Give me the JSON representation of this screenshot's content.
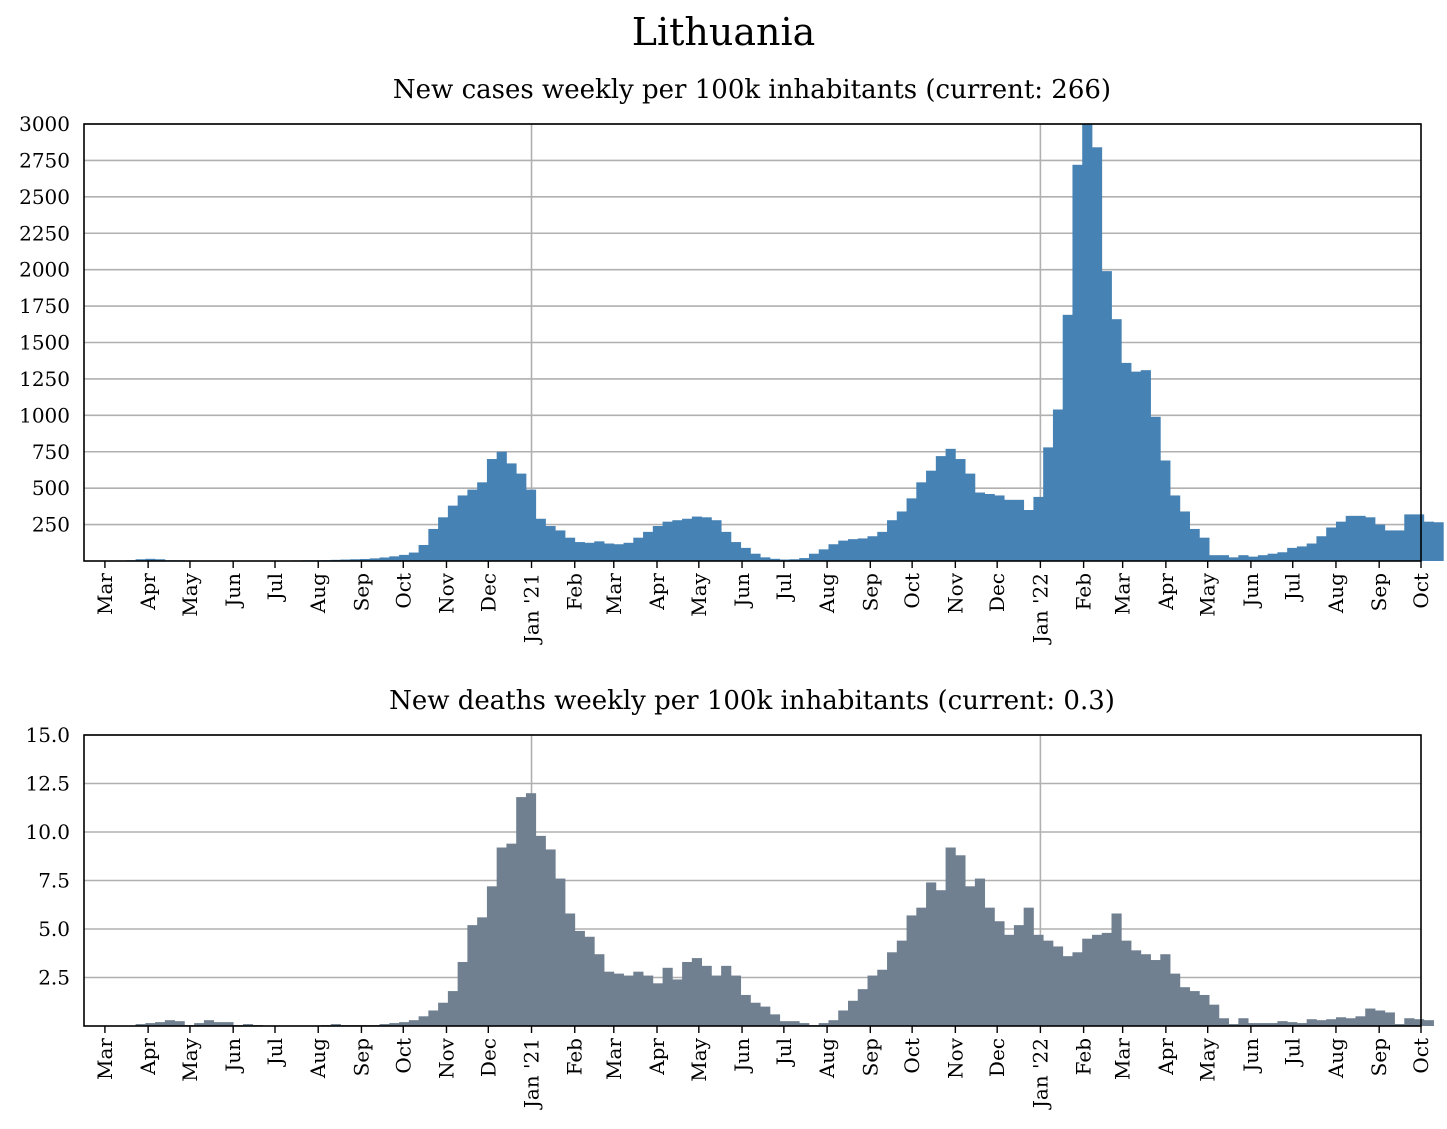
{
  "title": "Lithuania",
  "chart_data": [
    {
      "type": "bar",
      "title": "New cases weekly per 100k inhabitants (current: 266)",
      "xlabel": "",
      "ylabel": "",
      "ylim": [
        0,
        3000
      ],
      "yticks": [
        "250",
        "500",
        "750",
        "1000",
        "1250",
        "1500",
        "1750",
        "2000",
        "2250",
        "2500",
        "2750",
        "3000"
      ],
      "xticks": [
        "Mar",
        "Apr",
        "May",
        "Jun",
        "Jul",
        "Aug",
        "Sep",
        "Oct",
        "Nov",
        "Dec",
        "Jan '21",
        "Feb",
        "Mar",
        "Apr",
        "May",
        "Jun",
        "Jul",
        "Aug",
        "Sep",
        "Oct",
        "Nov",
        "Dec",
        "Jan '22",
        "Feb",
        "Mar",
        "Apr",
        "May",
        "Jun",
        "Jul",
        "Aug",
        "Sep",
        "Oct"
      ],
      "grid": true,
      "color": "#4682b4",
      "x_start": "2020-03-02",
      "week_days": 7,
      "values": [
        0,
        0,
        5,
        12,
        15,
        12,
        5,
        5,
        4,
        3,
        3,
        3,
        2,
        2,
        2,
        2,
        2,
        2,
        3,
        4,
        5,
        5,
        6,
        8,
        10,
        12,
        14,
        18,
        24,
        32,
        42,
        58,
        110,
        220,
        300,
        380,
        450,
        490,
        540,
        700,
        750,
        670,
        600,
        490,
        290,
        240,
        210,
        160,
        130,
        125,
        135,
        120,
        115,
        125,
        160,
        200,
        240,
        270,
        280,
        290,
        305,
        300,
        280,
        200,
        130,
        90,
        50,
        25,
        15,
        10,
        12,
        20,
        50,
        80,
        115,
        140,
        150,
        155,
        170,
        200,
        280,
        340,
        430,
        540,
        620,
        720,
        770,
        700,
        600,
        470,
        460,
        450,
        420,
        420,
        350,
        440,
        780,
        1040,
        1690,
        2720,
        3000,
        2840,
        1990,
        1660,
        1360,
        1300,
        1310,
        990,
        690,
        450,
        340,
        220,
        160,
        40,
        40,
        25,
        40,
        30,
        40,
        50,
        60,
        90,
        100,
        120,
        170,
        230,
        270,
        310,
        310,
        300,
        250,
        210,
        210,
        320,
        320,
        270,
        266
      ]
    },
    {
      "type": "bar",
      "title": "New deaths weekly per 100k inhabitants (current: 0.3)",
      "xlabel": "",
      "ylabel": "",
      "ylim": [
        0,
        15
      ],
      "yticks": [
        "2.5",
        "5.0",
        "7.5",
        "10.0",
        "12.5",
        "15.0"
      ],
      "xticks": [
        "Mar",
        "Apr",
        "May",
        "Jun",
        "Jul",
        "Aug",
        "Sep",
        "Oct",
        "Nov",
        "Dec",
        "Jan '21",
        "Feb",
        "Mar",
        "Apr",
        "May",
        "Jun",
        "Jul",
        "Aug",
        "Sep",
        "Oct",
        "Nov",
        "Dec",
        "Jan '22",
        "Feb",
        "Mar",
        "Apr",
        "May",
        "Jun",
        "Jul",
        "Aug",
        "Sep",
        "Oct"
      ],
      "grid": true,
      "color": "#708090",
      "x_start": "2020-03-02",
      "week_days": 7,
      "values": [
        0,
        0,
        0,
        0.1,
        0.15,
        0.2,
        0.3,
        0.25,
        0.05,
        0.15,
        0.3,
        0.2,
        0.2,
        0.05,
        0.1,
        0.05,
        0.03,
        0.03,
        0.03,
        0.03,
        0.03,
        0.03,
        0.05,
        0.1,
        0.05,
        0.05,
        0.05,
        0.05,
        0.1,
        0.15,
        0.2,
        0.3,
        0.5,
        0.8,
        1.2,
        1.8,
        3.3,
        5.2,
        5.6,
        7.2,
        9.2,
        9.4,
        11.8,
        12.0,
        9.8,
        9.1,
        7.6,
        5.8,
        4.9,
        4.6,
        3.7,
        2.8,
        2.7,
        2.6,
        2.8,
        2.6,
        2.2,
        3.0,
        2.4,
        3.3,
        3.5,
        3.1,
        2.6,
        3.1,
        2.6,
        1.6,
        1.2,
        1.0,
        0.6,
        0.25,
        0.25,
        0.15,
        0.05,
        0.15,
        0.3,
        0.8,
        1.3,
        1.9,
        2.6,
        2.9,
        3.8,
        4.4,
        5.7,
        6.1,
        7.4,
        7.0,
        9.2,
        8.8,
        7.2,
        7.6,
        6.1,
        5.4,
        4.7,
        5.2,
        6.1,
        4.7,
        4.4,
        4.1,
        3.6,
        3.8,
        4.5,
        4.7,
        4.8,
        5.8,
        4.4,
        3.9,
        3.7,
        3.4,
        3.7,
        2.7,
        2.0,
        1.8,
        1.6,
        1.1,
        0.4,
        0.1,
        0.4,
        0.15,
        0.15,
        0.15,
        0.25,
        0.2,
        0.15,
        0.35,
        0.3,
        0.35,
        0.45,
        0.4,
        0.5,
        0.9,
        0.8,
        0.7,
        0.1,
        0.4,
        0.35,
        0.3
      ]
    }
  ]
}
